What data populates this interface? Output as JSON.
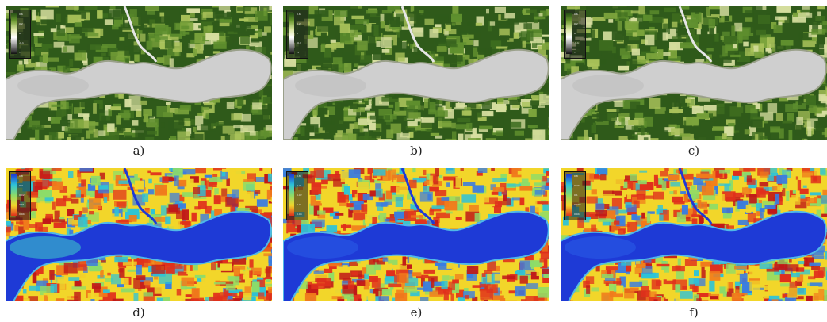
{
  "panels": [
    {
      "caption": "a)",
      "palette": "green",
      "legend_ticks": [
        "0.6",
        "0.2",
        "0",
        "-0.1",
        "-1"
      ]
    },
    {
      "caption": "b)",
      "palette": "green",
      "legend_ticks": [
        "0.6",
        "0.2",
        "0",
        "-0.1",
        "-1"
      ]
    },
    {
      "caption": "c)",
      "palette": "green",
      "legend_ticks": [
        "0.6",
        "0.2",
        "0",
        "-0.1",
        "-1"
      ]
    },
    {
      "caption": "d)",
      "palette": "rainbow",
      "legend_ticks": [
        "0.8",
        "0.4",
        "0.02",
        "0.01",
        "0.04"
      ]
    },
    {
      "caption": "e)",
      "palette": "rainbow",
      "legend_ticks": [
        "0.8",
        "0.4",
        "0.02",
        "0.01",
        "0.04"
      ]
    },
    {
      "caption": "f)",
      "palette": "rainbow",
      "legend_ticks": [
        "0.8",
        "0.24",
        "0.1",
        "0.002",
        "0.04"
      ]
    }
  ],
  "colors": {
    "vegetation_dark": "#2f5a1a",
    "vegetation_mid": "#5f8f2e",
    "vegetation_light": "#a9c25a",
    "water_grey": "#cfcfcf",
    "water_blue": "#1e3ad6",
    "rainbow_red": "#e0301c",
    "rainbow_yellow": "#f2d62a",
    "rainbow_cyan": "#2cc3d8"
  }
}
